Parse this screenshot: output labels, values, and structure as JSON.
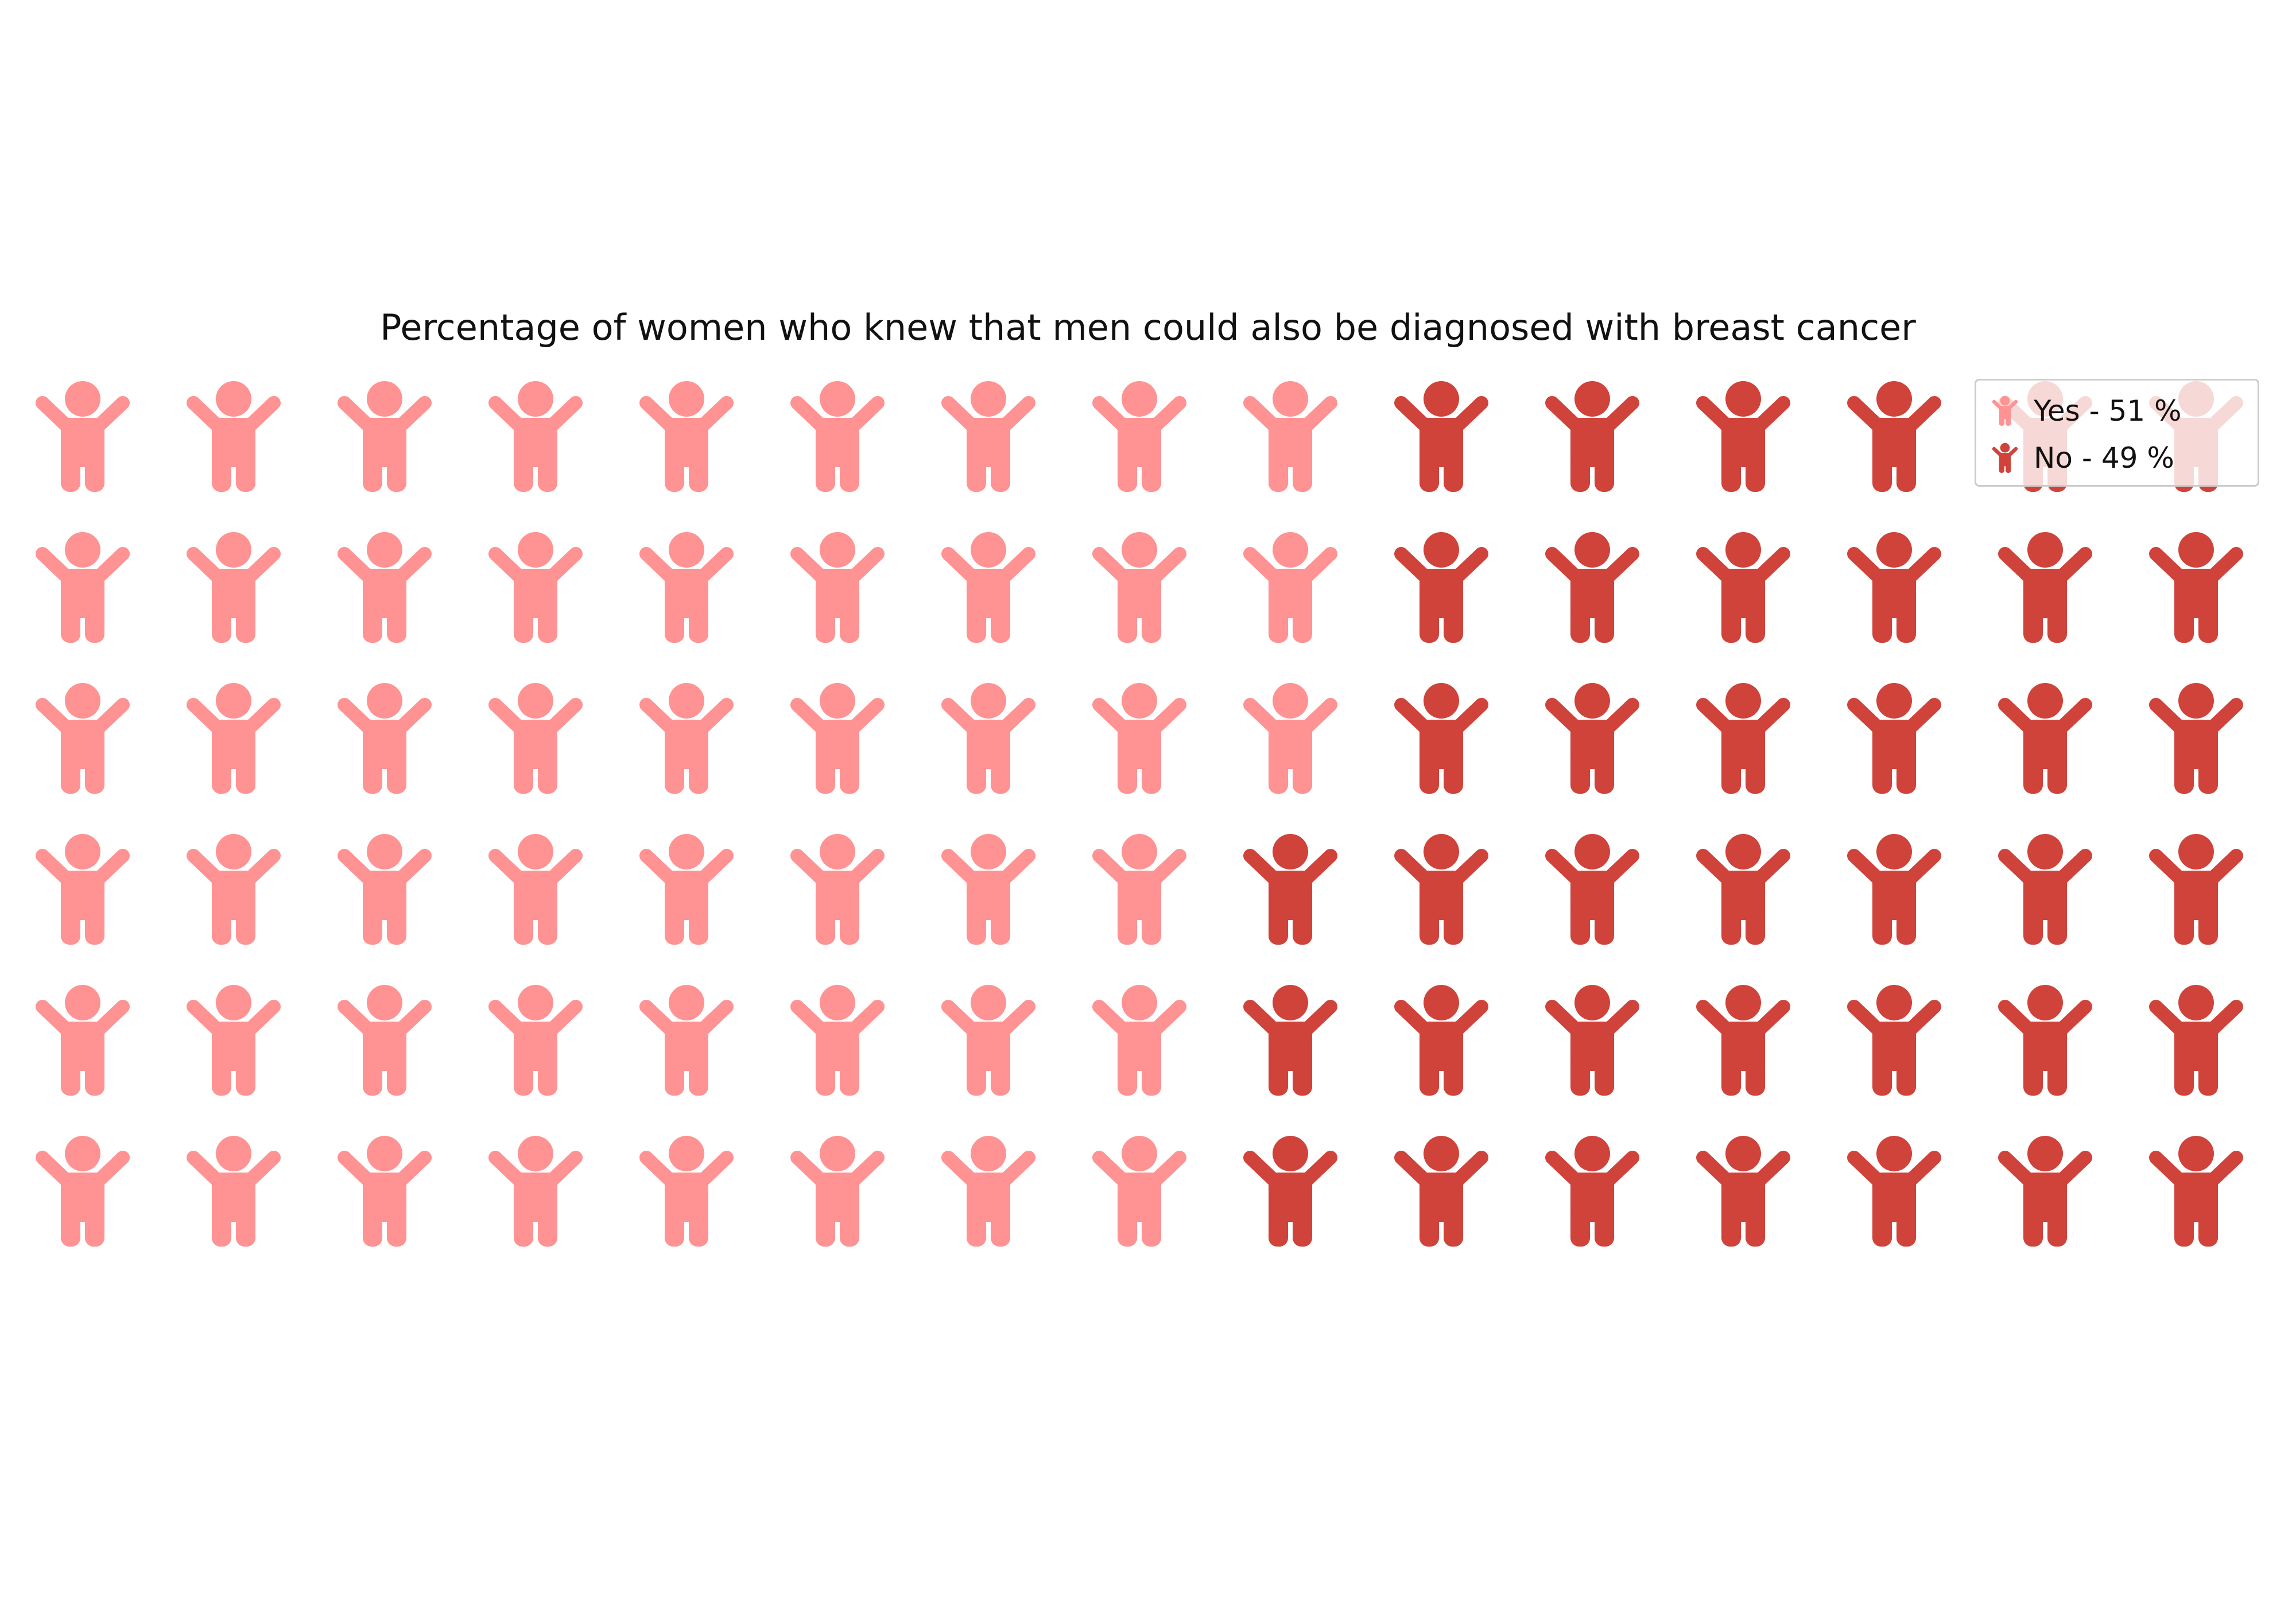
{
  "chart_data": {
    "type": "waffle",
    "title": "Percentage of women who knew that men could also be diagnosed with breast cancer",
    "icon": "child-icon",
    "rows": 6,
    "columns": 15,
    "series": [
      {
        "name": "Yes - 51 %",
        "value": 51,
        "color": "#ff9292"
      },
      {
        "name": "No - 49 %",
        "value": 49,
        "color": "#cf433b"
      }
    ],
    "legend": {
      "position": "top-right"
    }
  }
}
